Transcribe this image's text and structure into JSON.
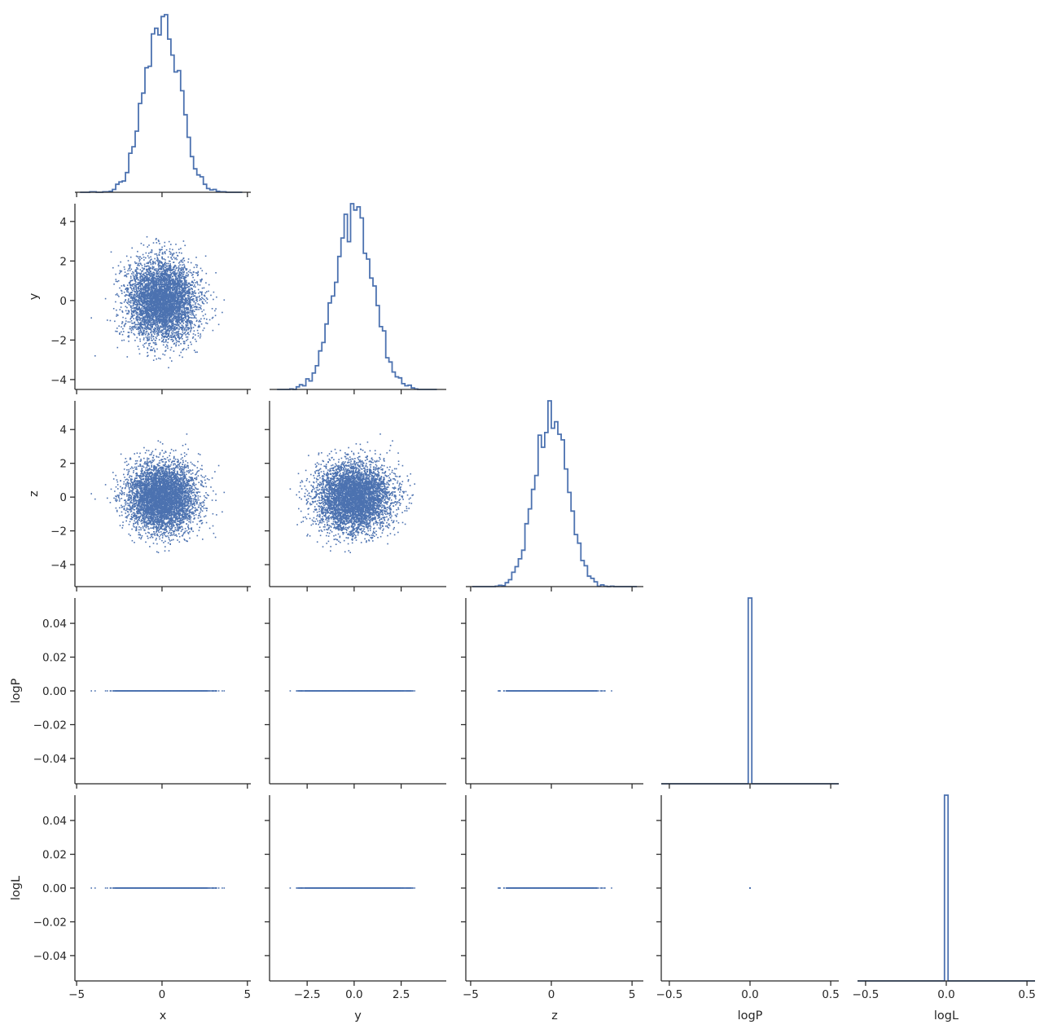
{
  "colors": {
    "series": "#4c72b0",
    "axis": "#262626"
  },
  "chart_data": {
    "type": "corner-pairplot",
    "title": "",
    "variables": [
      "x",
      "y",
      "z",
      "logP",
      "logL"
    ],
    "axes": {
      "x": {
        "label": "x",
        "range": [
          -5.1,
          5.2
        ],
        "ticks": [
          -5,
          0,
          5
        ],
        "tick_labels": [
          "−5",
          "0",
          "5"
        ]
      },
      "y": {
        "label": "y",
        "range": [
          -4.5,
          4.9
        ],
        "ticks": [
          -4,
          -2,
          0,
          2,
          4
        ],
        "tick_labels": [
          "−4",
          "−2",
          "0",
          "2",
          "4"
        ],
        "x_ticks": [
          -2.5,
          0.0,
          2.5
        ],
        "x_tick_labels": [
          "−2.5",
          "0.0",
          "2.5"
        ]
      },
      "z": {
        "label": "z",
        "range": [
          -5.3,
          5.7
        ],
        "ticks": [
          -4,
          -2,
          0,
          2,
          4
        ],
        "tick_labels": [
          "−4",
          "−2",
          "0",
          "2",
          "4"
        ],
        "x_ticks": [
          -5,
          0,
          5
        ],
        "x_tick_labels": [
          "−5",
          "0",
          "5"
        ]
      },
      "logP": {
        "label": "logP",
        "range": [
          -0.055,
          0.055
        ],
        "ticks": [
          -0.04,
          -0.02,
          0.0,
          0.02,
          0.04
        ],
        "tick_labels": [
          "−0.04",
          "−0.02",
          "0.00",
          "0.02",
          "0.04"
        ],
        "x_range": [
          -0.55,
          0.55
        ],
        "x_ticks": [
          -0.5,
          0.0,
          0.5
        ],
        "x_tick_labels": [
          "−0.5",
          "0.0",
          "0.5"
        ]
      },
      "logL": {
        "label": "logL",
        "range": [
          -0.055,
          0.055
        ],
        "ticks": [
          -0.04,
          -0.02,
          0.0,
          0.02,
          0.04
        ],
        "tick_labels": [
          "−0.04",
          "−0.02",
          "0.00",
          "0.02",
          "0.04"
        ],
        "x_range": [
          -0.55,
          0.55
        ],
        "x_ticks": [
          -0.5,
          0.0,
          0.5
        ],
        "x_tick_labels": [
          "−0.5",
          "0.0",
          "0.5"
        ]
      }
    },
    "histograms": {
      "x": {
        "type": "step",
        "distribution": "normal",
        "mean": 0.0,
        "sd": 1.0,
        "bins": 50,
        "range": [
          -4.8,
          4.7
        ]
      },
      "y": {
        "type": "step",
        "distribution": "normal",
        "mean": 0.0,
        "sd": 1.0,
        "bins": 50,
        "range": [
          -4.1,
          4.4
        ]
      },
      "z": {
        "type": "step",
        "distribution": "normal",
        "mean": 0.0,
        "sd": 1.0,
        "bins": 50,
        "range": [
          -4.9,
          5.3
        ]
      },
      "logP": {
        "type": "step",
        "spike_at": 0.0,
        "spike_halfwidth": 0.011
      },
      "logL": {
        "type": "step",
        "spike_at": 0.0,
        "spike_halfwidth": 0.011
      }
    },
    "scatter": {
      "sample_size": 5000,
      "marker_size": 1.6,
      "note_values": "x, y, z independent standard normal samples; logP = 0 and logL = 0 for all samples"
    },
    "grid": false,
    "legend": "none"
  }
}
